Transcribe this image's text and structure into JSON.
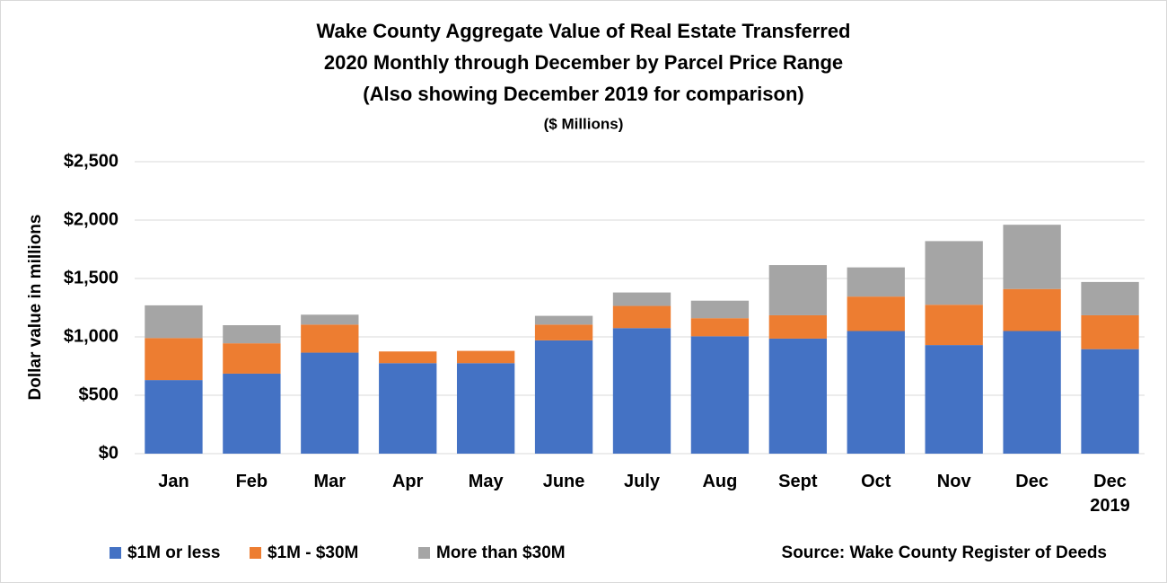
{
  "chart_data": {
    "type": "stacked_bar",
    "title": [
      "Wake County Aggregate Value of Real Estate Transferred",
      "2020 Monthly through December by Parcel Price Range",
      "(Also showing December 2019 for comparison)"
    ],
    "subtitle": "($ Millions)",
    "y_label": "Dollar value in millions",
    "source": "Source: Wake County Register of Deeds",
    "categories": [
      "Jan",
      "Feb",
      "Mar",
      "Apr",
      "May",
      "June",
      "July",
      "Aug",
      "Sept",
      "Oct",
      "Nov",
      "Dec",
      "Dec 2019"
    ],
    "series": [
      {
        "name": "$1M or less",
        "color": "#4472c4",
        "values": [
          630,
          685,
          865,
          775,
          775,
          970,
          1075,
          1005,
          985,
          1050,
          930,
          1050,
          895
        ]
      },
      {
        "name": "$1M - $30M",
        "color": "#ed7d31",
        "values": [
          360,
          260,
          240,
          100,
          105,
          135,
          190,
          155,
          200,
          295,
          345,
          360,
          290
        ]
      },
      {
        "name": "More than $30M",
        "color": "#a5a5a5",
        "values": [
          280,
          155,
          85,
          0,
          0,
          75,
          115,
          150,
          430,
          250,
          545,
          550,
          285
        ]
      }
    ],
    "ylim": [
      0,
      2500
    ],
    "yticks": [
      {
        "value": 0,
        "label": "$0"
      },
      {
        "value": 500,
        "label": "$500"
      },
      {
        "value": 1000,
        "label": "$1,000"
      },
      {
        "value": 1500,
        "label": "$1,500"
      },
      {
        "value": 2000,
        "label": "$2,000"
      },
      {
        "value": 2500,
        "label": "$2,500"
      }
    ],
    "grid": true
  }
}
